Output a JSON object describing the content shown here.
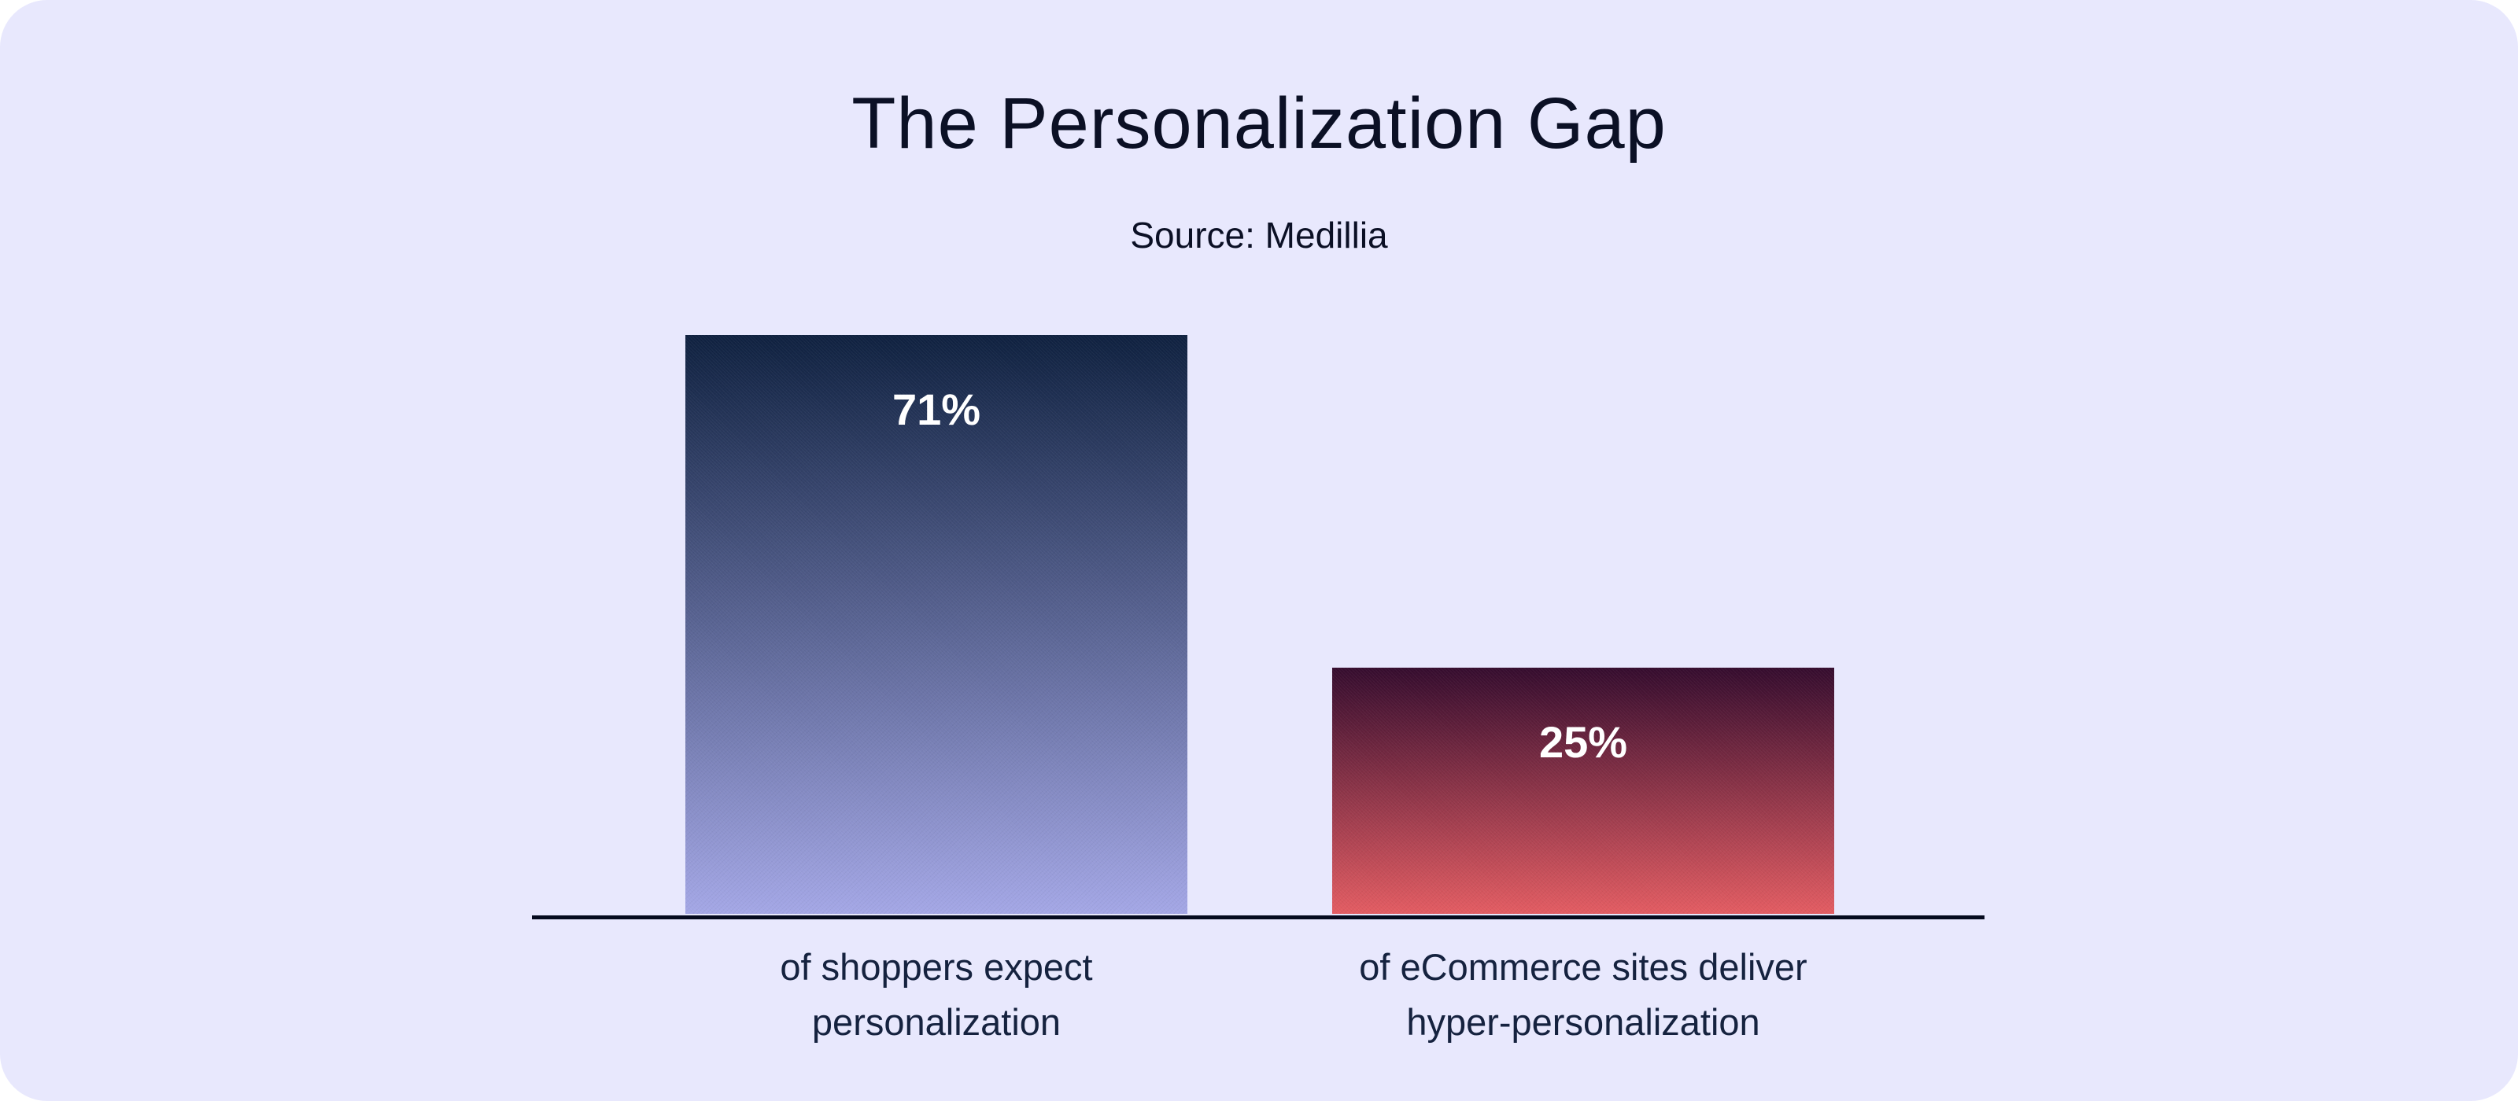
{
  "chart_data": {
    "type": "bar",
    "title": "The Personalization Gap",
    "subtitle": "Source: Medillia",
    "categories": [
      "of shoppers expect personalization",
      "of eCommerce sites deliver hyper-personalization"
    ],
    "category_lines": [
      [
        "of shoppers expect",
        "personalization"
      ],
      [
        "of eCommerce sites deliver",
        "hyper-personalization"
      ]
    ],
    "values": [
      71,
      25
    ],
    "value_labels": [
      "71%",
      "25%"
    ],
    "xlabel": "",
    "ylabel": "",
    "grid": false,
    "legend": "none",
    "colors": [
      [
        "#0f2140",
        "#a4a7e6"
      ],
      [
        "#350c2e",
        "#e35c62"
      ]
    ]
  },
  "colors": {
    "background": "#e8e8fd",
    "text": "#0b1025",
    "axis": "#050a1e"
  }
}
